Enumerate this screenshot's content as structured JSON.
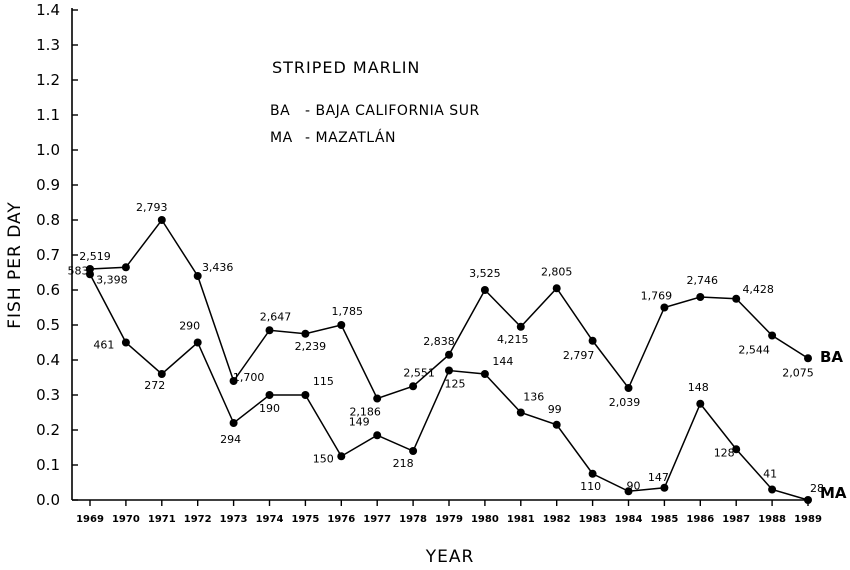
{
  "chart_data": {
    "type": "line",
    "title": "STRIPED MARLIN",
    "legend": [
      {
        "code": "BA",
        "label": "- BAJA CALIFORNIA SUR"
      },
      {
        "code": "MA",
        "label": "- MAZATLÁN"
      }
    ],
    "xlabel": "YEAR",
    "ylabel": "FISH PER DAY",
    "ylim": [
      0,
      1.4
    ],
    "yticks": [
      "0.0",
      "0.1",
      "0.2",
      "0.3",
      "0.4",
      "0.5",
      "0.6",
      "0.7",
      "0.8",
      "0.9",
      "1.0",
      "1.1",
      "1.2",
      "1.3",
      "1.4"
    ],
    "categories": [
      "1969",
      "1970",
      "1971",
      "1972",
      "1973",
      "1974",
      "1975",
      "1976",
      "1977",
      "1978",
      "1979",
      "1980",
      "1981",
      "1982",
      "1983",
      "1984",
      "1985",
      "1986",
      "1987",
      "1988",
      "1989"
    ],
    "series": [
      {
        "name": "BA",
        "values": [
          0.66,
          0.665,
          0.8,
          0.64,
          0.34,
          0.485,
          0.475,
          0.5,
          0.29,
          0.325,
          0.415,
          0.6,
          0.495,
          0.605,
          0.455,
          0.32,
          0.55,
          0.58,
          0.575,
          0.47,
          0.405
        ],
        "labels": [
          "2,519",
          "3,398",
          "2,793",
          "3,436",
          "1,700",
          "2,647",
          "2,239",
          "1,785",
          "2,186",
          "2,551",
          "2,838",
          "3,525",
          "4,215",
          "2,805",
          "2,797",
          "2,039",
          "1,769",
          "2,746",
          "4,428",
          "2,544",
          "2,075"
        ]
      },
      {
        "name": "MA",
        "values": [
          0.645,
          0.45,
          0.36,
          0.45,
          0.22,
          0.3,
          0.3,
          0.125,
          0.185,
          0.14,
          0.37,
          0.36,
          0.25,
          0.215,
          0.075,
          0.025,
          0.035,
          0.275,
          0.145,
          0.03,
          0.0
        ],
        "labels": [
          "583",
          "461",
          "272",
          "290",
          "294",
          "190",
          "115",
          "150",
          "149",
          "218",
          "125",
          "144",
          "136",
          "99",
          "110",
          "90",
          "147",
          "148",
          "128",
          "41",
          "28"
        ]
      }
    ]
  }
}
